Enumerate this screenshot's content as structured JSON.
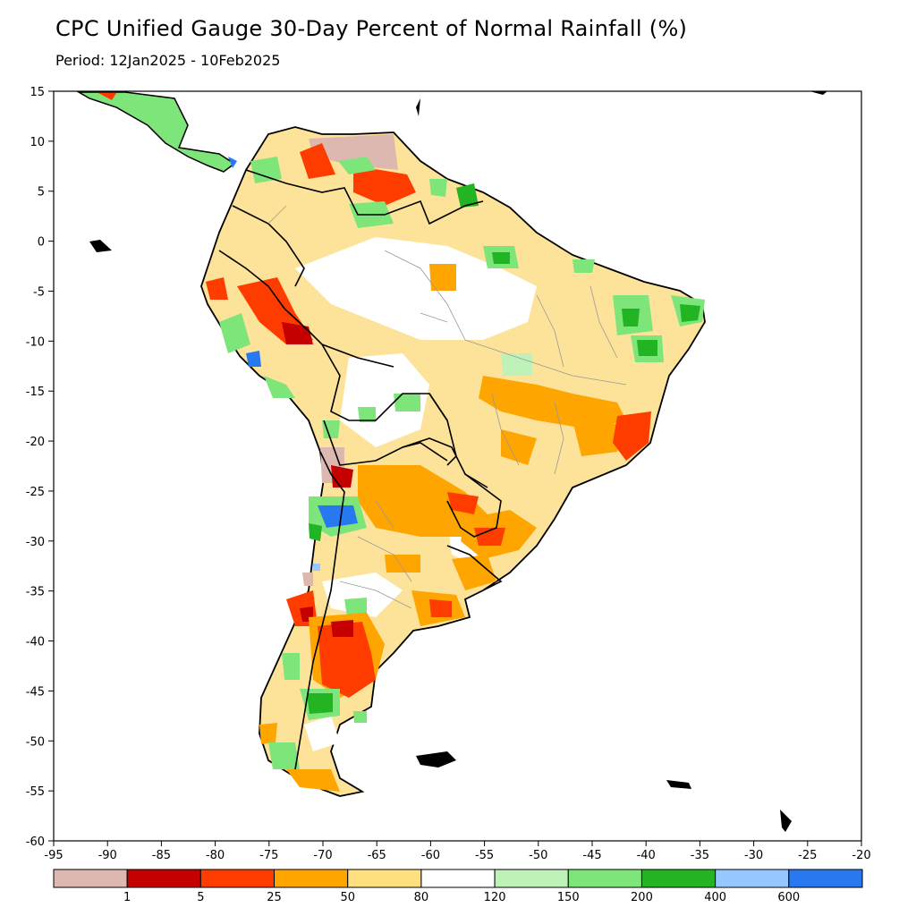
{
  "title": "CPC Unified Gauge 30-Day Percent of Normal Rainfall (%)",
  "subtitle": "Period: 12Jan2025 - 10Feb2025",
  "map": {
    "lon_range": [
      -95,
      -20
    ],
    "lat_range": [
      -60,
      15
    ],
    "x_ticks": [
      "-95",
      "-90",
      "-85",
      "-80",
      "-75",
      "-70",
      "-65",
      "-60",
      "-55",
      "-50",
      "-45",
      "-40",
      "-35",
      "-30",
      "-25",
      "-20"
    ],
    "y_ticks": [
      "15",
      "10",
      "5",
      "0",
      "-5",
      "-10",
      "-15",
      "-20",
      "-25",
      "-30",
      "-35",
      "-40",
      "-45",
      "-50",
      "-55",
      "-60"
    ]
  },
  "legend": {
    "bins": [
      {
        "color": "#dcb8b0"
      },
      {
        "color": "#c40000"
      },
      {
        "color": "#ff3c00"
      },
      {
        "color": "#ffa500"
      },
      {
        "color": "#ffe080"
      },
      {
        "color": "#ffffff"
      },
      {
        "color": "#bff2b8"
      },
      {
        "color": "#7ee57a"
      },
      {
        "color": "#22b422"
      },
      {
        "color": "#96c8ff"
      },
      {
        "color": "#2878f0"
      }
    ],
    "labels": [
      "1",
      "5",
      "25",
      "50",
      "80",
      "120",
      "150",
      "200",
      "400",
      "600"
    ]
  },
  "colors": {
    "land_base": "#fde39a",
    "white": "#ffffff",
    "orange": "#ffa500",
    "red_orange": "#ff3c00",
    "red": "#c40000",
    "pink": "#dcb8b0",
    "light_green": "#bff2b8",
    "green": "#7ee57a",
    "dark_green": "#22b422",
    "blue": "#2878f0"
  }
}
